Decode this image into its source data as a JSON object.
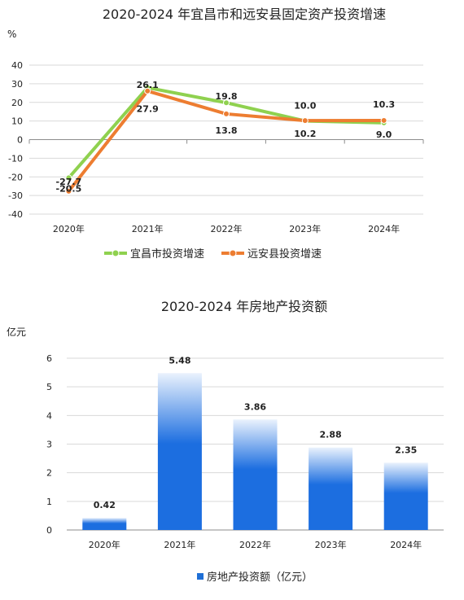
{
  "chart_data": [
    {
      "type": "line",
      "title": "2020-2024 年宜昌市和远安县固定资产投资增速",
      "yunit": "%",
      "categories": [
        "2020年",
        "2021年",
        "2022年",
        "2023年",
        "2024年"
      ],
      "ylim": [
        -40,
        40
      ],
      "yticks": [
        40,
        30,
        20,
        10,
        0,
        -10,
        -20,
        -30,
        -40
      ],
      "grid": true,
      "legend": "bottom",
      "series": [
        {
          "name": "宜昌市投资增速",
          "color": "#8fd14f",
          "values": [
            -20.5,
            27.9,
            19.8,
            10.0,
            9.0
          ],
          "labels": [
            "-20.5",
            "27.9",
            "19.8",
            "10.0",
            "9.0"
          ]
        },
        {
          "name": "远安县投资增速",
          "color": "#ed7d31",
          "values": [
            -27.7,
            26.1,
            13.8,
            10.2,
            10.3
          ],
          "labels": [
            "-27.7",
            "26.1",
            "13.8",
            "10.2",
            "10.3"
          ]
        }
      ]
    },
    {
      "type": "bar",
      "title": "2020-2024 年房地产投资额",
      "yunit": "亿元",
      "categories": [
        "2020年",
        "2021年",
        "2022年",
        "2023年",
        "2024年"
      ],
      "ylim": [
        0,
        6
      ],
      "yticks": [
        6,
        5,
        4,
        3,
        2,
        1,
        0
      ],
      "grid": true,
      "legend": "bottom",
      "series": [
        {
          "name": "房地产投资额（亿元）",
          "color": "#1f6fd6",
          "values": [
            0.42,
            5.48,
            3.86,
            2.88,
            2.35
          ],
          "labels": [
            "0.42",
            "5.48",
            "3.86",
            "2.88",
            "2.35"
          ]
        }
      ]
    }
  ]
}
